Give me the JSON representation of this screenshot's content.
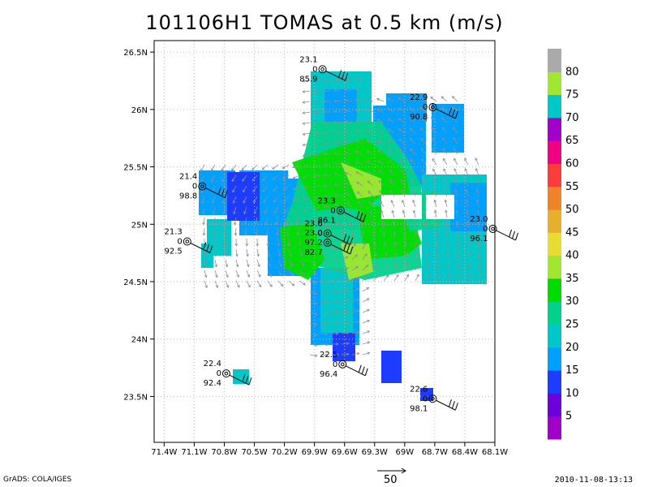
{
  "chart_data": {
    "type": "heatmap",
    "title": "101106H1 TOMAS at 0.5 km (m/s)",
    "xlabel": "",
    "ylabel": "",
    "xlim": [
      -71.5,
      -68.1
    ],
    "ylim": [
      23.1,
      26.6
    ],
    "x_ticks": [
      "71.4W",
      "71.1W",
      "70.8W",
      "70.5W",
      "70.2W",
      "69.9W",
      "69.6W",
      "69.3W",
      "69W",
      "68.7W",
      "68.4W",
      "68.1W"
    ],
    "x_tick_values": [
      -71.4,
      -71.1,
      -70.8,
      -70.5,
      -70.2,
      -69.9,
      -69.6,
      -69.3,
      -69.0,
      -68.7,
      -68.4,
      -68.1
    ],
    "y_ticks": [
      "23.5N",
      "24N",
      "24.5N",
      "25N",
      "25.5N",
      "26N",
      "26.5N"
    ],
    "y_tick_values": [
      23.5,
      24.0,
      24.5,
      25.0,
      25.5,
      26.0,
      26.5
    ],
    "grid": true,
    "colorbar": {
      "labels": [
        "5",
        "10",
        "15",
        "20",
        "25",
        "30",
        "35",
        "40",
        "45",
        "50",
        "55",
        "60",
        "65",
        "70",
        "75",
        "80"
      ],
      "levels": [
        0,
        5,
        10,
        15,
        20,
        25,
        30,
        35,
        40,
        45,
        50,
        55,
        60,
        65,
        70,
        75,
        80,
        85
      ],
      "colors": [
        "#a000c8",
        "#6e00dc",
        "#1e3cff",
        "#00a0ff",
        "#00c8c8",
        "#00d28c",
        "#00dc00",
        "#a0e632",
        "#e6dc32",
        "#e6af2d",
        "#f08228",
        "#fa3c3c",
        "#f00082",
        "#a000c8",
        "#00c8c8",
        "#a0e632",
        "#aaaaaa"
      ]
    },
    "stations": [
      {
        "lon": -69.82,
        "lat": 26.35,
        "temp": "23.1",
        "dew": "0",
        "pres": "85.9"
      },
      {
        "lon": -68.72,
        "lat": 26.02,
        "temp": "22.9",
        "dew": "0",
        "pres": "90.8"
      },
      {
        "lon": -71.02,
        "lat": 25.33,
        "temp": "21.4",
        "dew": "0",
        "pres": "98.8"
      },
      {
        "lon": -71.17,
        "lat": 24.85,
        "temp": "21.3",
        "dew": "0",
        "pres": "92.5"
      },
      {
        "lon": -69.64,
        "lat": 25.12,
        "temp": "23.3",
        "dew": "0",
        "pres": "86.1"
      },
      {
        "lon": -69.77,
        "lat": 24.92,
        "temp": "23.6",
        "dew": "0",
        "pres": ""
      },
      {
        "lon": -69.77,
        "lat": 24.84,
        "temp": "23.0",
        "dew": "97.2",
        "pres": "82.7"
      },
      {
        "lon": -68.12,
        "lat": 24.96,
        "temp": "23.0",
        "dew": "0",
        "pres": "96.1"
      },
      {
        "lon": -70.78,
        "lat": 23.7,
        "temp": "22.4",
        "dew": "0",
        "pres": "92.4"
      },
      {
        "lon": -69.62,
        "lat": 23.78,
        "temp": "22.5",
        "dew": "0",
        "pres": "96.4"
      },
      {
        "lon": -68.72,
        "lat": 23.48,
        "temp": "22.6",
        "dew": "0",
        "pres": "98.1"
      }
    ],
    "reference_vector": "50"
  },
  "footer": {
    "left": "GrADS: COLA/IGES",
    "right": "2010-11-08-13:13"
  }
}
